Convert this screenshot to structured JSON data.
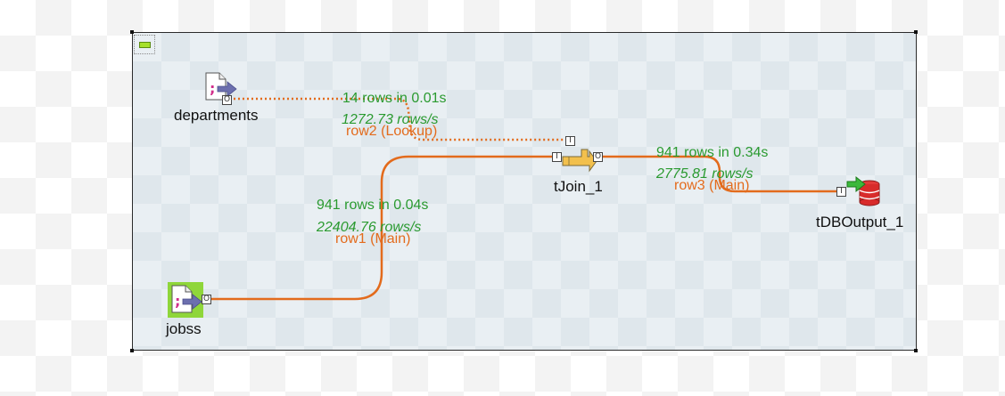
{
  "canvas": {
    "components": {
      "departments": {
        "label": "departments",
        "icon": "file-input-icon"
      },
      "jobss": {
        "label": "jobss",
        "icon": "file-input-icon"
      },
      "tjoin": {
        "label": "tJoin_1",
        "icon": "join-icon"
      },
      "tdboutput": {
        "label": "tDBOutput_1",
        "icon": "database-output-icon"
      }
    },
    "links": {
      "row1": {
        "label": "row1 (Main)",
        "rows": "941 rows in 0.04s",
        "rate": "22404.76 rows/s"
      },
      "row2": {
        "label": "row2 (Lookup)",
        "rows": "14 rows in 0.01s",
        "rate": "1272.73 rows/s"
      },
      "row3": {
        "label": "row3 (Main)",
        "rows": "941 rows in 0.34s",
        "rate": "2775.81 rows/s"
      }
    },
    "connector_glyphs": {
      "output": "O",
      "input": "I"
    },
    "colors": {
      "main_link": "#e36b1c",
      "stat_text": "#2a9a30",
      "subjob_background": "#e9eff3",
      "collapse_button": "#a6e12b"
    }
  }
}
